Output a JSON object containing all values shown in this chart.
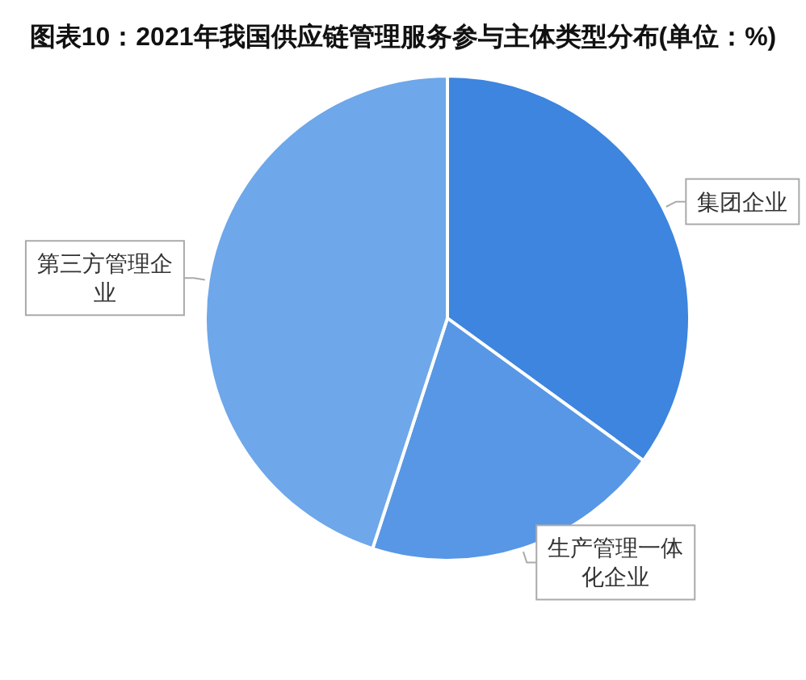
{
  "chart_data": {
    "type": "pie",
    "title": "图表10：2021年我国供应链管理服务参与主体类型分布(单位：%)",
    "categories": [
      "集团企业",
      "生产管理一体化企业",
      "第三方管理企业"
    ],
    "values": [
      35,
      20,
      45
    ],
    "colors": [
      "#3d85de",
      "#5797e5",
      "#6ea7ea"
    ]
  }
}
